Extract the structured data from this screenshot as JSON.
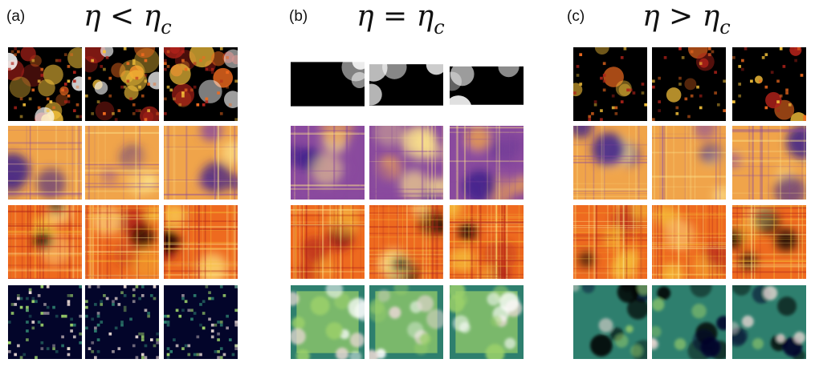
{
  "panels": [
    {
      "label": "(a)",
      "symbol": "η",
      "relation": "<",
      "rhs": "η",
      "sub": "c"
    },
    {
      "label": "(b)",
      "symbol": "η",
      "relation": "=",
      "rhs": "η",
      "sub": "c"
    },
    {
      "label": "(c)",
      "symbol": "η",
      "relation": ">",
      "rhs": "η",
      "sub": "c"
    }
  ],
  "row_colormaps": [
    "hot-clusters",
    "purple-orange",
    "red-yellow-noise",
    "dark-green-density"
  ],
  "colors": {
    "black": "#000000",
    "dark_red": "#b0221a",
    "orange": "#ee6a1f",
    "yellow": "#f6c23a",
    "white": "#ffffff",
    "purple": "#3b1e8c",
    "violet": "#8a4a9e",
    "amber": "#f0a44a",
    "cream": "#fde38a",
    "navy": "#03052a",
    "teal": "#2e7f6e",
    "lime": "#9bd06a",
    "pale": "#e7d7d2"
  }
}
